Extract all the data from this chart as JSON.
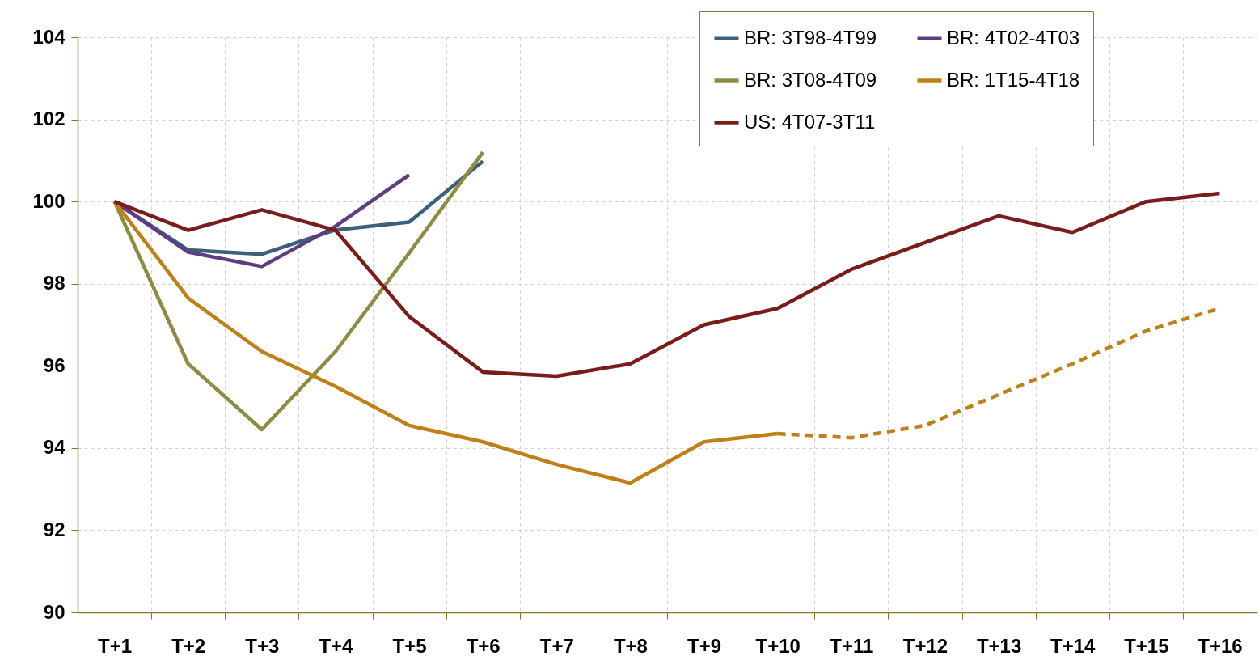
{
  "chart_data": {
    "type": "line",
    "categories": [
      "T+1",
      "T+2",
      "T+3",
      "T+4",
      "T+5",
      "T+6",
      "T+7",
      "T+8",
      "T+9",
      "T+10",
      "T+11",
      "T+12",
      "T+13",
      "T+14",
      "T+15",
      "T+16"
    ],
    "series": [
      {
        "name": "BR: 3T98-4T99",
        "color": "#3e5f7a",
        "values": [
          100,
          98.82,
          98.72,
          99.31,
          99.5,
          100.98,
          null,
          null,
          null,
          null,
          null,
          null,
          null,
          null,
          null,
          null
        ]
      },
      {
        "name": "BR: 4T02-4T03",
        "color": "#5e3d80",
        "values": [
          100,
          98.77,
          98.42,
          99.4,
          100.65,
          null,
          null,
          null,
          null,
          null,
          null,
          null,
          null,
          null,
          null,
          null
        ]
      },
      {
        "name": "BR: 3T08-4T09",
        "color": "#8c8c42",
        "values": [
          100,
          96.05,
          94.45,
          96.35,
          98.75,
          101.2,
          null,
          null,
          null,
          null,
          null,
          null,
          null,
          null,
          null,
          null
        ]
      },
      {
        "name": "BR: 1T15-4T18",
        "color": "#c08018",
        "values": [
          100,
          97.65,
          96.35,
          95.5,
          94.55,
          94.15,
          93.6,
          93.15,
          94.15,
          94.35,
          null,
          null,
          null,
          null,
          null,
          null
        ]
      },
      {
        "name": "US: 4T07-3T11",
        "color": "#7b1c1c",
        "values": [
          100,
          99.3,
          99.8,
          99.3,
          97.2,
          95.85,
          95.75,
          96.05,
          97.0,
          97.4,
          98.35,
          99.0,
          99.65,
          99.25,
          100.0,
          100.2
        ]
      },
      {
        "color": "#c08018",
        "line_style": "dashed",
        "values": [
          null,
          null,
          null,
          null,
          null,
          null,
          null,
          null,
          null,
          94.35,
          94.25,
          94.55,
          95.3,
          96.05,
          96.85,
          97.4
        ]
      }
    ],
    "ylim": [
      90,
      104
    ],
    "yticks": [
      90,
      92,
      94,
      96,
      98,
      100,
      102,
      104
    ],
    "grid": true,
    "legend": "top right",
    "line_style": "solid"
  }
}
